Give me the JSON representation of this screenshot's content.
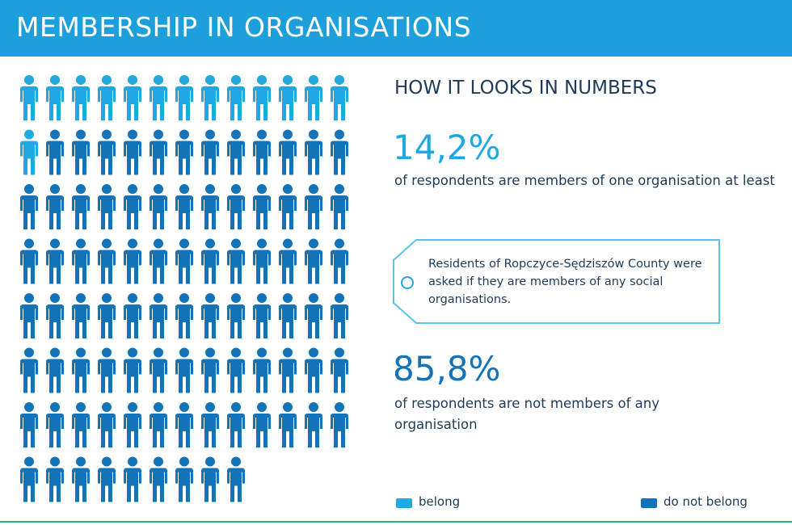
{
  "chart_data": {
    "type": "pictograph",
    "title": "MEMBERSHIP IN ORGANISATIONS",
    "subtitle": "HOW IT LOOKS IN NUMBERS",
    "categories": [
      "belong",
      "do not belong"
    ],
    "values": [
      14.2,
      85.8
    ],
    "value_labels": [
      "14,2%",
      "85,8%"
    ],
    "colors": [
      "#1fa9e3",
      "#1273b9"
    ],
    "descriptions": [
      "of respondents are members of one organisation at least",
      "of respondents are not members of any organisation"
    ],
    "annotation": "Residents of Ropczyce-Sędziszów County were asked if they are members of any social organisations."
  }
}
